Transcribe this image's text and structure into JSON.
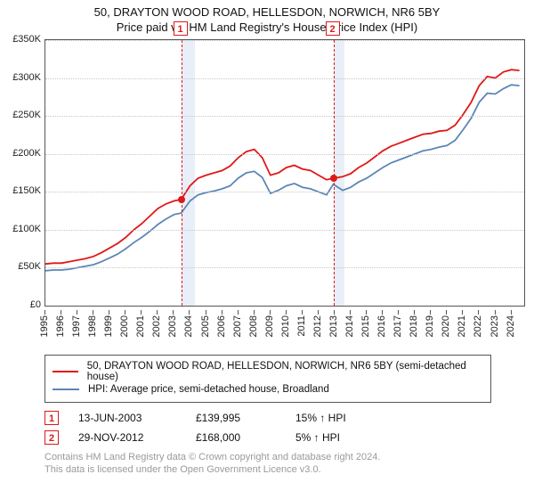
{
  "title_line1": "50, DRAYTON WOOD ROAD, HELLESDON, NORWICH, NR6 5BY",
  "title_line2": "Price paid vs. HM Land Registry's House Price Index (HPI)",
  "chart": {
    "type": "line",
    "background_color": "#ffffff",
    "plot_border_color": "#555555",
    "grid_color": "#c7c7c7",
    "xlim": [
      1995,
      2024.8
    ],
    "ylim": [
      0,
      350000
    ],
    "ytick_step": 50000,
    "yticks": [
      "£0",
      "£50K",
      "£100K",
      "£150K",
      "£200K",
      "£250K",
      "£300K",
      "£350K"
    ],
    "xticks_years": [
      1995,
      1996,
      1997,
      1998,
      1999,
      2000,
      2001,
      2002,
      2003,
      2004,
      2005,
      2006,
      2007,
      2008,
      2009,
      2010,
      2011,
      2012,
      2013,
      2014,
      2015,
      2016,
      2017,
      2018,
      2019,
      2020,
      2021,
      2022,
      2023,
      2024
    ],
    "xtick_label_rotation_deg": -90,
    "line_width": 1.8,
    "shaded_bands": [
      {
        "start_year": 2003.45,
        "end_year": 2004.3,
        "fill": "#e9eff8"
      },
      {
        "start_year": 2012.92,
        "end_year": 2013.6,
        "fill": "#e9eff8"
      }
    ],
    "sale_markers": [
      {
        "id": "1",
        "year": 2003.45,
        "price": 139995,
        "dot_color": "#e01818"
      },
      {
        "id": "2",
        "year": 2012.92,
        "price": 168000,
        "dot_color": "#e01818"
      }
    ],
    "series": [
      {
        "name": "50, DRAYTON WOOD ROAD, HELLESDON, NORWICH, NR6 5BY (semi-detached house)",
        "color": "#e01818",
        "t": [
          1995.0,
          1995.5,
          1996.0,
          1996.5,
          1997.0,
          1997.5,
          1998.0,
          1998.5,
          1999.0,
          1999.5,
          2000.0,
          2000.5,
          2001.0,
          2001.5,
          2002.0,
          2002.5,
          2003.0,
          2003.45,
          2004.0,
          2004.5,
          2005.0,
          2005.5,
          2006.0,
          2006.5,
          2007.0,
          2007.5,
          2008.0,
          2008.5,
          2009.0,
          2009.5,
          2010.0,
          2010.5,
          2011.0,
          2011.5,
          2012.0,
          2012.5,
          2012.92,
          2013.5,
          2014.0,
          2014.5,
          2015.0,
          2015.5,
          2016.0,
          2016.5,
          2017.0,
          2017.5,
          2018.0,
          2018.5,
          2019.0,
          2019.5,
          2020.0,
          2020.5,
          2021.0,
          2021.5,
          2022.0,
          2022.5,
          2023.0,
          2023.5,
          2024.0,
          2024.5
        ],
        "y": [
          55000,
          56000,
          56000,
          58000,
          60000,
          62000,
          65000,
          70000,
          76000,
          82000,
          90000,
          100000,
          108000,
          118000,
          128000,
          134000,
          138000,
          139995,
          158000,
          168000,
          172000,
          175000,
          178000,
          184000,
          195000,
          203000,
          206000,
          195000,
          172000,
          175000,
          182000,
          185000,
          180000,
          178000,
          172000,
          166000,
          168000,
          170000,
          174000,
          182000,
          188000,
          196000,
          204000,
          210000,
          214000,
          218000,
          222000,
          226000,
          227000,
          230000,
          231000,
          238000,
          252000,
          268000,
          290000,
          302000,
          300000,
          308000,
          311000,
          310000
        ]
      },
      {
        "name": "HPI: Average price, semi-detached house, Broadland",
        "color": "#5c86b6",
        "t": [
          1995.0,
          1995.5,
          1996.0,
          1996.5,
          1997.0,
          1997.5,
          1998.0,
          1998.5,
          1999.0,
          1999.5,
          2000.0,
          2000.5,
          2001.0,
          2001.5,
          2002.0,
          2002.5,
          2003.0,
          2003.45,
          2004.0,
          2004.5,
          2005.0,
          2005.5,
          2006.0,
          2006.5,
          2007.0,
          2007.5,
          2008.0,
          2008.5,
          2009.0,
          2009.5,
          2010.0,
          2010.5,
          2011.0,
          2011.5,
          2012.0,
          2012.5,
          2012.92,
          2013.5,
          2014.0,
          2014.5,
          2015.0,
          2015.5,
          2016.0,
          2016.5,
          2017.0,
          2017.5,
          2018.0,
          2018.5,
          2019.0,
          2019.5,
          2020.0,
          2020.5,
          2021.0,
          2021.5,
          2022.0,
          2022.5,
          2023.0,
          2023.5,
          2024.0,
          2024.5
        ],
        "y": [
          46000,
          47000,
          47000,
          48000,
          50000,
          52000,
          54000,
          58000,
          63000,
          68000,
          75000,
          83000,
          90000,
          98000,
          107000,
          114000,
          120000,
          122000,
          138000,
          146000,
          149000,
          151000,
          154000,
          158000,
          168000,
          175000,
          177000,
          169000,
          148000,
          152000,
          158000,
          161000,
          156000,
          154000,
          150000,
          146000,
          160000,
          152000,
          156000,
          163000,
          168000,
          175000,
          182000,
          188000,
          192000,
          196000,
          200000,
          204000,
          206000,
          209000,
          211000,
          218000,
          232000,
          247000,
          268000,
          280000,
          279000,
          286000,
          291000,
          290000
        ]
      }
    ]
  },
  "legend": {
    "rows": [
      {
        "color": "#e01818",
        "label": "50, DRAYTON WOOD ROAD, HELLESDON, NORWICH, NR6 5BY (semi-detached house)"
      },
      {
        "color": "#5c86b6",
        "label": "HPI: Average price, semi-detached house, Broadland"
      }
    ]
  },
  "sales": [
    {
      "id": "1",
      "date": "13-JUN-2003",
      "price": "£139,995",
      "delta": "15% ↑ HPI"
    },
    {
      "id": "2",
      "date": "29-NOV-2012",
      "price": "£168,000",
      "delta": "5% ↑ HPI"
    }
  ],
  "attribution": {
    "line1": "Contains HM Land Registry data © Crown copyright and database right 2024.",
    "line2": "This data is licensed under the Open Government Licence v3.0."
  }
}
